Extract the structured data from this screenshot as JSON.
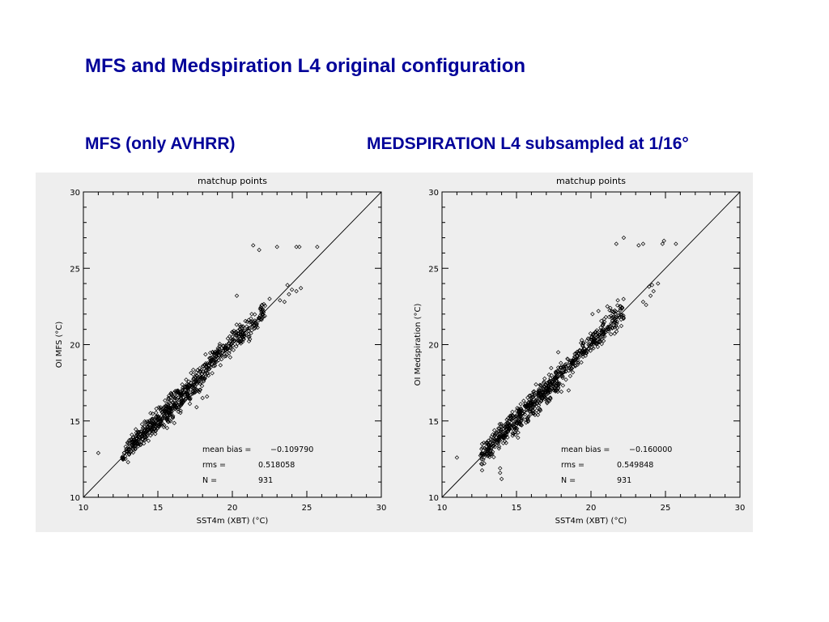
{
  "slide": {
    "title": "MFS and Medspiration L4 original configuration",
    "subtitle_left": "MFS (only AVHRR)",
    "subtitle_right": "MEDSPIRATION L4 subsampled at 1/16°",
    "title_color": "#000099"
  },
  "chart_data": [
    {
      "type": "scatter",
      "title": "matchup points",
      "xlabel": "SST4m (XBT)   (°C)",
      "ylabel": "OI MFS  (°C)",
      "xlim": [
        10,
        30
      ],
      "ylim": [
        10,
        30
      ],
      "xticks": [
        "10",
        "15",
        "20",
        "25",
        "30"
      ],
      "yticks": [
        "10",
        "15",
        "20",
        "25",
        "30"
      ],
      "grid": false,
      "reference_line": "y = x",
      "stats": [
        {
          "label": "mean bias =",
          "value": "−0.109790"
        },
        {
          "label": "rms =",
          "value": "0.518058"
        },
        {
          "label": "N =",
          "value": "931"
        }
      ],
      "cluster_bands": [
        {
          "x": [
            12.6,
            15.0
          ],
          "bias": 0.1,
          "spread": 0.35,
          "n": 180
        },
        {
          "x": [
            15.0,
            18.2
          ],
          "bias": 0.0,
          "spread": 0.45,
          "n": 280
        },
        {
          "x": [
            18.2,
            20.5
          ],
          "bias": 0.2,
          "spread": 0.35,
          "n": 130
        },
        {
          "x": [
            20.5,
            22.2
          ],
          "bias": 0.0,
          "spread": 0.35,
          "n": 90
        }
      ],
      "points": [
        [
          11.0,
          12.9
        ],
        [
          12.7,
          12.5
        ],
        [
          13.0,
          12.3
        ],
        [
          14.3,
          14.6
        ],
        [
          14.9,
          15.8
        ],
        [
          15.6,
          16.1
        ],
        [
          16.0,
          15.2
        ],
        [
          16.2,
          16.6
        ],
        [
          16.9,
          17.7
        ],
        [
          17.2,
          17.3
        ],
        [
          17.5,
          17.0
        ],
        [
          17.6,
          15.9
        ],
        [
          18.0,
          16.5
        ],
        [
          18.3,
          16.6
        ],
        [
          18.5,
          18.8
        ],
        [
          19.0,
          19.5
        ],
        [
          19.4,
          19.6
        ],
        [
          19.7,
          20.4
        ],
        [
          20.1,
          20.9
        ],
        [
          20.5,
          21.3
        ],
        [
          21.0,
          21.5
        ],
        [
          21.3,
          22.0
        ],
        [
          21.6,
          21.4
        ],
        [
          21.9,
          22.3
        ],
        [
          22.0,
          22.6
        ],
        [
          21.4,
          26.5
        ],
        [
          21.8,
          26.2
        ],
        [
          23.0,
          26.4
        ],
        [
          24.3,
          26.4
        ],
        [
          24.5,
          26.4
        ],
        [
          25.7,
          26.4
        ],
        [
          23.5,
          22.8
        ],
        [
          23.8,
          23.3
        ],
        [
          24.0,
          23.6
        ],
        [
          24.3,
          23.5
        ],
        [
          24.6,
          23.7
        ],
        [
          23.7,
          23.9
        ],
        [
          23.2,
          22.9
        ],
        [
          20.3,
          23.2
        ],
        [
          22.5,
          23.0
        ]
      ]
    },
    {
      "type": "scatter",
      "title": "matchup points",
      "xlabel": "SST4m (XBT)   (°C)",
      "ylabel": "OI Medspiration  (°C)",
      "xlim": [
        10,
        30
      ],
      "ylim": [
        10,
        30
      ],
      "xticks": [
        "10",
        "15",
        "20",
        "25",
        "30"
      ],
      "yticks": [
        "10",
        "15",
        "20",
        "25",
        "30"
      ],
      "grid": false,
      "reference_line": "y = x",
      "stats": [
        {
          "label": "mean bias =",
          "value": "−0.160000"
        },
        {
          "label": "rms =",
          "value": "0.549848"
        },
        {
          "label": "N =",
          "value": "931"
        }
      ],
      "cluster_bands": [
        {
          "x": [
            12.5,
            15.0
          ],
          "bias": 0.1,
          "spread": 0.4,
          "n": 190
        },
        {
          "x": [
            15.0,
            18.2
          ],
          "bias": 0.0,
          "spread": 0.45,
          "n": 280
        },
        {
          "x": [
            18.2,
            20.5
          ],
          "bias": 0.1,
          "spread": 0.35,
          "n": 130
        },
        {
          "x": [
            20.5,
            22.2
          ],
          "bias": 0.0,
          "spread": 0.4,
          "n": 90
        }
      ],
      "points": [
        [
          11.0,
          12.6
        ],
        [
          13.9,
          11.9
        ],
        [
          13.9,
          11.6
        ],
        [
          14.0,
          11.2
        ],
        [
          15.1,
          13.9
        ],
        [
          15.5,
          15.6
        ],
        [
          16.3,
          16.3
        ],
        [
          17.0,
          17.3
        ],
        [
          17.8,
          18.5
        ],
        [
          18.2,
          18.2
        ],
        [
          18.5,
          17.0
        ],
        [
          18.9,
          19.2
        ],
        [
          19.4,
          19.5
        ],
        [
          19.8,
          20.4
        ],
        [
          20.3,
          20.8
        ],
        [
          20.6,
          20.2
        ],
        [
          20.8,
          21.3
        ],
        [
          21.0,
          21.8
        ],
        [
          21.3,
          22.4
        ],
        [
          21.6,
          21.7
        ],
        [
          20.1,
          22.0
        ],
        [
          21.8,
          22.9
        ],
        [
          22.0,
          22.5
        ],
        [
          21.1,
          22.5
        ],
        [
          21.7,
          26.6
        ],
        [
          22.2,
          27.0
        ],
        [
          23.2,
          26.5
        ],
        [
          23.5,
          26.6
        ],
        [
          24.8,
          26.6
        ],
        [
          24.9,
          26.8
        ],
        [
          25.7,
          26.6
        ],
        [
          23.5,
          22.8
        ],
        [
          23.7,
          22.6
        ],
        [
          24.0,
          23.2
        ],
        [
          24.1,
          23.9
        ],
        [
          24.2,
          23.5
        ],
        [
          24.5,
          24.0
        ],
        [
          23.9,
          23.8
        ],
        [
          20.5,
          22.2
        ],
        [
          17.8,
          19.5
        ]
      ]
    }
  ]
}
